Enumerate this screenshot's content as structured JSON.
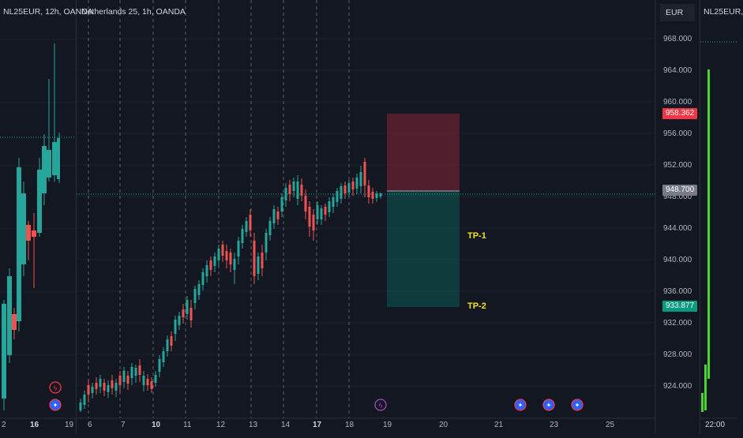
{
  "left_pane": {
    "title": "NL25EUR, 12h, OANDA",
    "date_labels": [
      "2",
      "16",
      "19"
    ]
  },
  "main_pane": {
    "title": "Netherlands 25, 1h, OANDA",
    "date_labels": [
      "6",
      "7",
      "10",
      "11",
      "12",
      "13",
      "14",
      "17",
      "18",
      "19",
      "20",
      "21",
      "23",
      "25"
    ],
    "price_axis": [
      "968.000",
      "964.000",
      "960.000",
      "956.000",
      "952.000",
      "948.000",
      "944.000",
      "940.000",
      "936.000",
      "932.000",
      "928.000",
      "924.000"
    ],
    "stop_price": "958.362",
    "current_price": "948.700",
    "target_price": "933.877",
    "tp1_label": "TP-1",
    "tp2_label": "TP-2",
    "currency": "EUR",
    "colors": {
      "up": "#26a69a",
      "down": "#ef5350",
      "stop": "#f23645",
      "target": "#089981",
      "tp": "#f5e21b"
    }
  },
  "right_pane": {
    "title": "NL25EUR,",
    "time_label": "22:00"
  }
}
